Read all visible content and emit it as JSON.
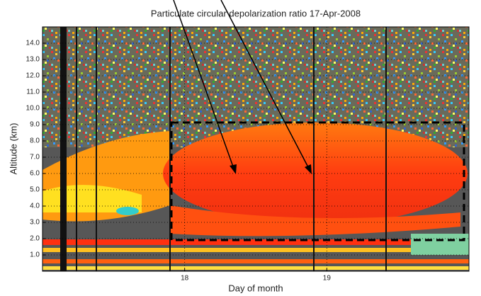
{
  "chart_data": {
    "type": "heatmap",
    "title": "Particulate circular depolarization ratio  17-Apr-2008",
    "xlabel": "Day of month",
    "ylabel": "Altitude (km)",
    "xlim": [
      17,
      20
    ],
    "xticks": [
      18,
      19
    ],
    "ylim": [
      0,
      15
    ],
    "yticks": [
      {
        "value": 1,
        "label": "1.0"
      },
      {
        "value": 2,
        "label": "2.0"
      },
      {
        "value": 3,
        "label": "3.0"
      },
      {
        "value": 4,
        "label": "4.0"
      },
      {
        "value": 5,
        "label": "5.0"
      },
      {
        "value": 6,
        "label": "6.0"
      },
      {
        "value": 7,
        "label": "7.0"
      },
      {
        "value": 8,
        "label": "8.0"
      },
      {
        "value": 9,
        "label": "9.0"
      },
      {
        "value": 10,
        "label": "10.0"
      },
      {
        "value": 11,
        "label": "11.0"
      },
      {
        "value": 12,
        "label": "12.0"
      },
      {
        "value": 13,
        "label": "13.0"
      },
      {
        "value": 14,
        "label": "14.0"
      }
    ],
    "grid": true
  }
}
